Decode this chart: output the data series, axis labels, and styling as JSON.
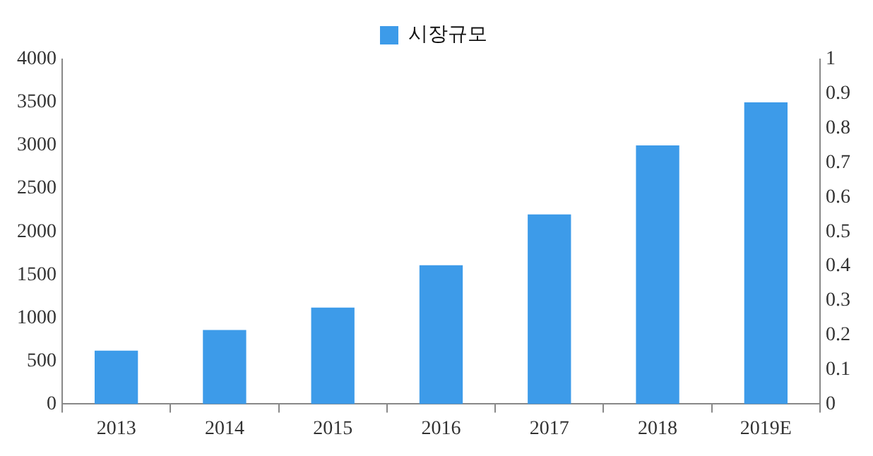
{
  "chart_data": {
    "type": "bar",
    "categories": [
      "2013",
      "2014",
      "2015",
      "2016",
      "2017",
      "2018",
      "2019E"
    ],
    "series": [
      {
        "name": "시장규모",
        "color": "#3d9be9",
        "values": [
          620,
          860,
          1120,
          1610,
          2200,
          3000,
          3500
        ]
      }
    ],
    "ylim": [
      0,
      4000
    ],
    "yticks": [
      0,
      500,
      1000,
      1500,
      2000,
      2500,
      3000,
      3500,
      4000
    ],
    "y2lim": [
      0,
      1
    ],
    "y2ticks": [
      0,
      0.1,
      0.2,
      0.3,
      0.4,
      0.5,
      0.6,
      0.7,
      0.8,
      0.9,
      1
    ],
    "grid": false,
    "legend": "top"
  }
}
